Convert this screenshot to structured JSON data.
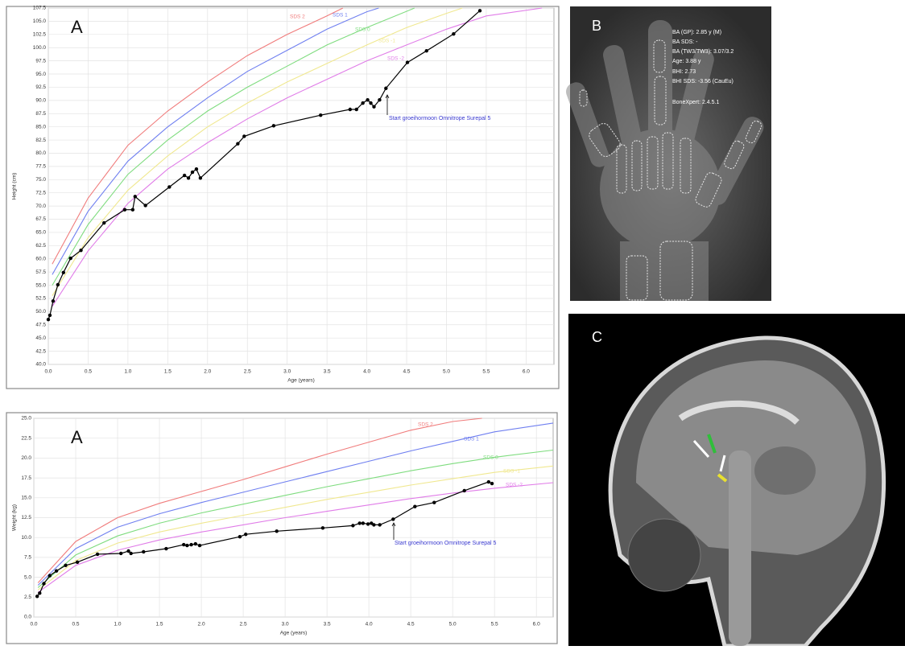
{
  "chart_data": [
    {
      "type": "line",
      "title": "A",
      "xlabel": "Age (years)",
      "ylabel": "Height (cm)",
      "xlim": [
        0,
        6.35
      ],
      "ylim": [
        40,
        107.5
      ],
      "grid": true,
      "xticks": [
        {
          "value": 0,
          "label": "0.0"
        },
        0.5,
        {
          "value": 1,
          "label": "1.0"
        },
        1.5,
        {
          "value": 2,
          "label": "2.0"
        },
        2.5,
        {
          "value": 3,
          "label": "3.0"
        },
        3.5,
        {
          "value": 4,
          "label": "4.0"
        },
        4.5,
        {
          "value": 5,
          "label": "5.0"
        },
        5.5,
        {
          "value": 6,
          "label": "6.0"
        }
      ],
      "yticks": [
        {
          "value": 40,
          "label": "40.0"
        },
        42.5,
        {
          "value": 45,
          "label": "45.0"
        },
        47.5,
        {
          "value": 50,
          "label": "50.0"
        },
        52.5,
        {
          "value": 55,
          "label": "55.0"
        },
        57.5,
        {
          "value": 60,
          "label": "60.0"
        },
        62.5,
        {
          "value": 65,
          "label": "65.0"
        },
        67.5,
        {
          "value": 70,
          "label": "70.0"
        },
        72.5,
        {
          "value": 75,
          "label": "75.0"
        },
        77.5,
        {
          "value": 80,
          "label": "80.0"
        },
        82.5,
        {
          "value": 85,
          "label": "85.0"
        },
        87.5,
        {
          "value": 90,
          "label": "90.0"
        },
        92.5,
        {
          "value": 95,
          "label": "95.0"
        },
        97.5,
        {
          "value": 100,
          "label": "100.0"
        },
        102.5,
        {
          "value": 105,
          "label": "105.0"
        },
        107.5
      ],
      "annotation": "Start groeihormoon Omnitrope Surepal 5",
      "series": [
        {
          "name": "SDS 2",
          "color": "#f07c7c",
          "x": [
            0.05,
            0.5,
            1,
            1.5,
            2,
            2.5,
            3,
            3.5,
            3.7
          ],
          "values": [
            59,
            71.5,
            81.5,
            88,
            93.5,
            98.5,
            102.5,
            106,
            107.5
          ]
        },
        {
          "name": "SDS 1",
          "color": "#6f7ff0",
          "x": [
            0.05,
            0.5,
            1,
            1.5,
            2,
            2.5,
            3,
            3.5,
            4,
            4.15
          ],
          "values": [
            57,
            69,
            78.5,
            85,
            90.5,
            95.5,
            99.5,
            103.5,
            106.8,
            107.5
          ]
        },
        {
          "name": "SDS 0",
          "color": "#7fdc7f",
          "x": [
            0.05,
            0.5,
            1,
            1.5,
            2,
            2.5,
            3,
            3.5,
            4,
            4.6
          ],
          "values": [
            55,
            66.5,
            76,
            82.5,
            88,
            92.5,
            96.5,
            100.5,
            103.8,
            107.5
          ]
        },
        {
          "name": "SDS -1",
          "color": "#f0e890",
          "x": [
            0.05,
            0.5,
            1,
            1.5,
            2,
            2.5,
            3,
            3.5,
            4,
            4.5,
            5,
            5.2
          ],
          "values": [
            53,
            64,
            73,
            79.5,
            85,
            89.5,
            93.5,
            97,
            100.5,
            103.8,
            106.5,
            107.5
          ]
        },
        {
          "name": "SDS -2",
          "color": "#e07ce8",
          "x": [
            0.05,
            0.5,
            1,
            1.5,
            2,
            2.5,
            3,
            3.5,
            4,
            4.5,
            5,
            5.5,
            6.2
          ],
          "values": [
            51,
            61.5,
            70.5,
            77,
            82,
            86.5,
            90.5,
            94,
            97.5,
            100.5,
            103.5,
            106,
            107.5
          ]
        },
        {
          "color": "#000000",
          "markers": true,
          "x": [
            0,
            0.02,
            0.06,
            0.12,
            0.19,
            0.28,
            0.41,
            0.7,
            0.96,
            1.06,
            1.09,
            1.22,
            1.52,
            1.71,
            1.76,
            1.81,
            1.86,
            1.91,
            2.38,
            2.46,
            2.83,
            3.42,
            3.79,
            3.87,
            3.95,
            4.01,
            4.05,
            4.09,
            4.16,
            4.24,
            4.51,
            4.75,
            5.09,
            5.42
          ],
          "values": [
            48.5,
            49.3,
            52,
            55.1,
            57.4,
            60.1,
            61.6,
            66.8,
            69.3,
            69.3,
            71.8,
            70.1,
            73.6,
            75.8,
            75.3,
            76.4,
            77,
            75.3,
            81.8,
            83.2,
            85.2,
            87.2,
            88.3,
            88.3,
            89.5,
            90.1,
            89.5,
            88.8,
            90.1,
            92.3,
            97.2,
            99.4,
            102.6,
            107
          ]
        }
      ]
    },
    {
      "type": "line",
      "title": "A",
      "xlabel": "Age (years)",
      "ylabel": "Weight (kg)",
      "xlim": [
        0,
        6.2
      ],
      "ylim": [
        0,
        25
      ],
      "grid": true,
      "xticks": [
        {
          "value": 0,
          "label": "0.0"
        },
        0.5,
        {
          "value": 1,
          "label": "1.0"
        },
        1.5,
        {
          "value": 2,
          "label": "2.0"
        },
        2.5,
        {
          "value": 3,
          "label": "3.0"
        },
        3.5,
        {
          "value": 4,
          "label": "4.0"
        },
        4.5,
        {
          "value": 5,
          "label": "5.0"
        },
        5.5,
        {
          "value": 6,
          "label": "6.0"
        }
      ],
      "yticks": [
        {
          "value": 0,
          "label": "0.0"
        },
        2.5,
        {
          "value": 5,
          "label": "5.0"
        },
        7.5,
        {
          "value": 10,
          "label": "10.0"
        },
        12.5,
        {
          "value": 15,
          "label": "15.0"
        },
        17.5,
        {
          "value": 20,
          "label": "20.0"
        },
        22.5,
        {
          "value": 25,
          "label": "25.0"
        }
      ],
      "annotation": "Start groeihormoon Omnitrope Surepal 5",
      "series": [
        {
          "name": "SDS 2",
          "color": "#f07c7c",
          "x": [
            0.05,
            0.5,
            1,
            1.5,
            2,
            2.5,
            3,
            3.5,
            4,
            4.5,
            5,
            5.35
          ],
          "values": [
            4.3,
            9.5,
            12.5,
            14.3,
            15.8,
            17.3,
            18.9,
            20.5,
            22,
            23.5,
            24.6,
            25
          ]
        },
        {
          "name": "SDS 1",
          "color": "#6f7ff0",
          "x": [
            0.05,
            0.5,
            1,
            1.5,
            2,
            2.5,
            3,
            3.5,
            4,
            4.5,
            5,
            5.5,
            6.2
          ],
          "values": [
            4,
            8.6,
            11.3,
            13,
            14.4,
            15.7,
            17,
            18.3,
            19.6,
            20.9,
            22.1,
            23.3,
            24.4
          ]
        },
        {
          "name": "SDS 0",
          "color": "#7fdc7f",
          "x": [
            0.05,
            0.5,
            1,
            1.5,
            2,
            2.5,
            3,
            3.5,
            4,
            4.5,
            5,
            5.5,
            6.2
          ],
          "values": [
            3.7,
            7.8,
            10.2,
            11.8,
            13.1,
            14.2,
            15.3,
            16.4,
            17.4,
            18.4,
            19.3,
            20.1,
            21
          ]
        },
        {
          "name": "SDS -1",
          "color": "#f0e890",
          "x": [
            0.05,
            0.5,
            1,
            1.5,
            2,
            2.5,
            3,
            3.5,
            4,
            4.5,
            5,
            5.5,
            6.2
          ],
          "values": [
            3.4,
            7.1,
            9.3,
            10.7,
            11.8,
            12.8,
            13.8,
            14.8,
            15.7,
            16.6,
            17.4,
            18.2,
            19
          ]
        },
        {
          "name": "SDS -2",
          "color": "#e07ce8",
          "x": [
            0.05,
            0.5,
            1,
            1.5,
            2,
            2.5,
            3,
            3.5,
            4,
            4.5,
            5,
            5.5,
            6.2
          ],
          "values": [
            3.1,
            6.5,
            8.4,
            9.7,
            10.7,
            11.6,
            12.5,
            13.3,
            14.1,
            14.9,
            15.6,
            16.2,
            16.9
          ]
        },
        {
          "color": "#000000",
          "markers": true,
          "x": [
            0.04,
            0.07,
            0.12,
            0.19,
            0.27,
            0.38,
            0.52,
            0.76,
            1.04,
            1.13,
            1.16,
            1.31,
            1.58,
            1.79,
            1.83,
            1.88,
            1.93,
            1.98,
            2.46,
            2.53,
            2.9,
            3.45,
            3.81,
            3.89,
            3.93,
            3.99,
            4.03,
            4.06,
            4.13,
            4.29,
            4.55,
            4.78,
            5.14,
            5.43,
            5.47
          ],
          "values": [
            2.6,
            3,
            4.2,
            5.2,
            5.8,
            6.5,
            6.9,
            7.9,
            8,
            8.3,
            8,
            8.2,
            8.6,
            9.1,
            9,
            9.1,
            9.2,
            9,
            10.1,
            10.4,
            10.8,
            11.2,
            11.5,
            11.8,
            11.8,
            11.7,
            11.8,
            11.6,
            11.6,
            12.3,
            13.9,
            14.4,
            15.9,
            17,
            16.8
          ]
        }
      ]
    }
  ],
  "panels": {
    "b": {
      "label": "B",
      "lines": [
        "BA (GP): 2.85 y (M)",
        "BA SDS: -",
        "BA (TW3/TW3): 3.07/3.2",
        "Age: 3.88 y",
        "BHI: 2.73",
        "BHI SDS: -3.56 (CauEu)",
        "BoneXpert: 2.4.5.1"
      ]
    },
    "c": {
      "label": "C"
    }
  }
}
